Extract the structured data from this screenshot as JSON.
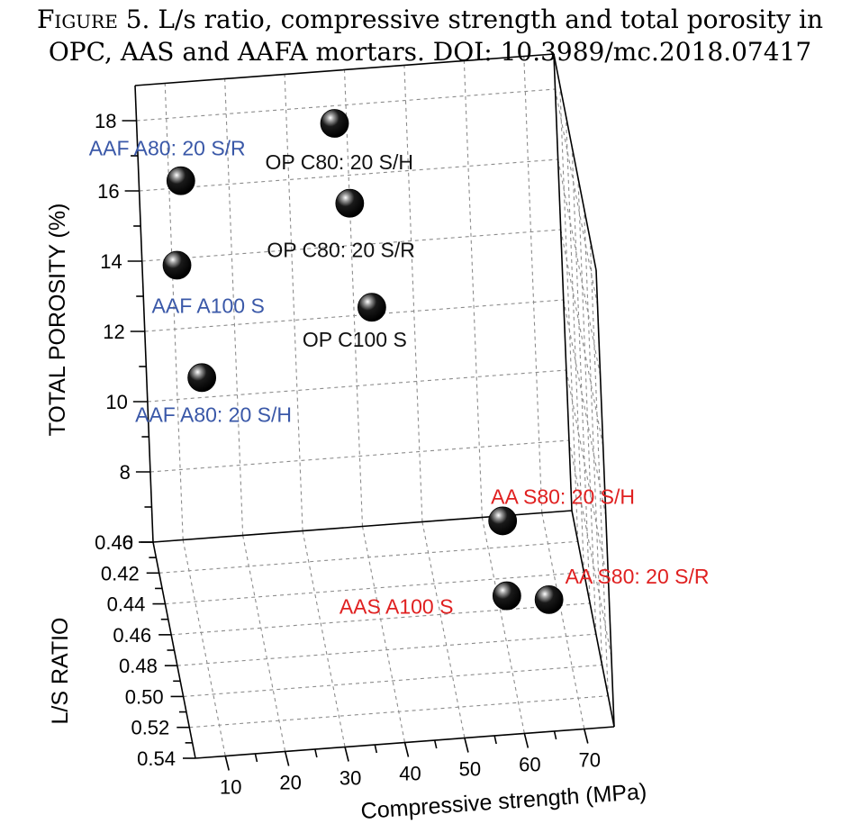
{
  "caption": {
    "lead": "Figure 5.",
    "line1": "L/s ratio, compressive strength and total porosity in",
    "line2": "OPC, AAS and AAFA mortars. DOI: 10.3989/mc.2018.07417"
  },
  "chart_data": {
    "type": "scatter",
    "title": "",
    "xlabel": "Compressive strength (MPa)",
    "ylabel": "L/S RATIO",
    "zlabel": "TOTAL POROSITY (%)",
    "x_ticks": [
      "10",
      "20",
      "30",
      "40",
      "50",
      "60",
      "70"
    ],
    "y_ticks": [
      "0.40",
      "0.42",
      "0.44",
      "0.46",
      "0.48",
      "0.50",
      "0.52",
      "0.54"
    ],
    "z_ticks": [
      "6",
      "8",
      "10",
      "12",
      "14",
      "16",
      "18"
    ],
    "xlim": [
      5,
      75
    ],
    "ylim": [
      0.4,
      0.54
    ],
    "zlim": [
      6,
      19
    ],
    "grid": true,
    "colors": {
      "AAFA": "#3a58a8",
      "OPC": "#111111",
      "AAS": "#e02020"
    },
    "points": [
      {
        "label": "AAF A80: 20 S/R",
        "group": "AAFA",
        "x": 12,
        "y": 0.4,
        "z": 16.2
      },
      {
        "label": "AAF A100 S",
        "group": "AAFA",
        "x": 10,
        "y": 0.42,
        "z": 14.7
      },
      {
        "label": "AAF A80: 20 S/H",
        "group": "AAFA",
        "x": 13,
        "y": 0.43,
        "z": 11.9
      },
      {
        "label": "OP C80: 20 S/H",
        "group": "OPC",
        "x": 38,
        "y": 0.4,
        "z": 17.5
      },
      {
        "label": "OP C80: 20 S/R",
        "group": "OPC",
        "x": 40,
        "y": 0.4,
        "z": 15.2
      },
      {
        "label": "OP C100 S",
        "group": "OPC",
        "x": 43,
        "y": 0.4,
        "z": 12.2
      },
      {
        "label": "AA S80: 20 S/H",
        "group": "AAS",
        "x": 63,
        "y": 0.41,
        "z": 6.3
      },
      {
        "label": "AAS A100 S",
        "group": "AAS",
        "x": 62,
        "y": 0.44,
        "z": 5.5
      },
      {
        "label": "AA S80: 20 S/R",
        "group": "AAS",
        "x": 69,
        "y": 0.44,
        "z": 5.3
      }
    ]
  }
}
